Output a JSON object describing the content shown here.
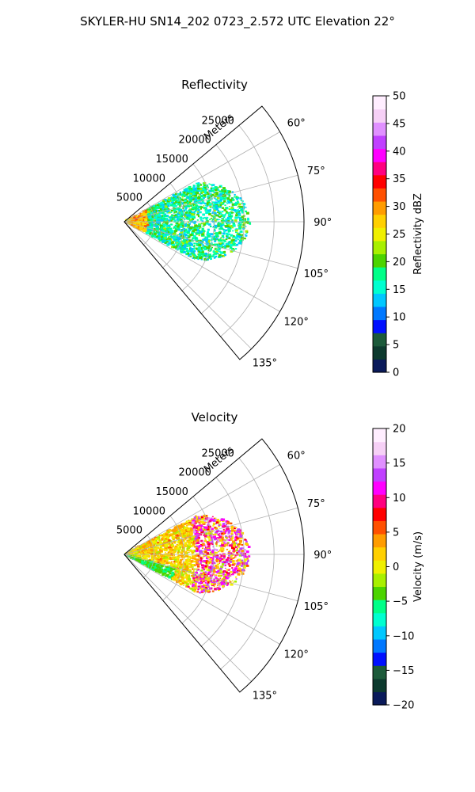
{
  "figure": {
    "suptitle": "SKYLER-HU  SN14_202  0723_2.572 UTC Elevation 22°"
  },
  "chart_data": [
    {
      "type": "polar-sector-ppi",
      "title": "Reflectivity",
      "radial_label": "Meters",
      "theta_ticks": [
        "60°",
        "75°",
        "90°",
        "105°",
        "120°",
        "135°"
      ],
      "theta_values": [
        60,
        75,
        90,
        105,
        120,
        135
      ],
      "theta_range_deg": [
        50,
        140
      ],
      "r_ticks": [
        "5000",
        "10000",
        "15000",
        "20000",
        "25000"
      ],
      "r_values": [
        5000,
        10000,
        15000,
        20000,
        25000
      ],
      "r_max": 30000,
      "grid": true,
      "colorbar": {
        "label": "Reflectivity dBZ",
        "min": 0,
        "max": 50,
        "ticks": [
          "0",
          "5",
          "10",
          "15",
          "20",
          "25",
          "30",
          "35",
          "40",
          "45",
          "50"
        ],
        "tick_values": [
          0,
          5,
          10,
          15,
          20,
          25,
          30,
          35,
          40,
          45,
          50
        ],
        "stops": [
          "#0a1a5a",
          "#0d3a2e",
          "#1c5a3a",
          "#0010ff",
          "#0078ff",
          "#00c8ff",
          "#00ffd0",
          "#00ff88",
          "#4cd400",
          "#a8f000",
          "#f0f000",
          "#ffd000",
          "#ff9c00",
          "#ff5000",
          "#ff0000",
          "#ff0080",
          "#ff00ff",
          "#c040ff",
          "#e090ff",
          "#f6d0f6",
          "#ffeeff"
        ]
      },
      "data_extent": {
        "r_range_m": [
          0,
          21000
        ],
        "theta_range_deg": [
          62,
          118
        ],
        "dominant_dBZ": [
          12,
          22
        ],
        "near_origin_dBZ": [
          24,
          33
        ]
      }
    },
    {
      "type": "polar-sector-ppi",
      "title": "Velocity",
      "radial_label": "Meters",
      "theta_ticks": [
        "60°",
        "75°",
        "90°",
        "105°",
        "120°",
        "135°"
      ],
      "theta_values": [
        60,
        75,
        90,
        105,
        120,
        135
      ],
      "theta_range_deg": [
        50,
        140
      ],
      "r_ticks": [
        "5000",
        "10000",
        "15000",
        "20000",
        "25000"
      ],
      "r_values": [
        5000,
        10000,
        15000,
        20000,
        25000
      ],
      "r_max": 30000,
      "grid": true,
      "colorbar": {
        "label": "Velocity (m/s)",
        "min": -20,
        "max": 20,
        "ticks": [
          "−20",
          "−15",
          "−10",
          "−5",
          "0",
          "5",
          "10",
          "15",
          "20"
        ],
        "tick_values": [
          -20,
          -15,
          -10,
          -5,
          0,
          5,
          10,
          15,
          20
        ],
        "stops": [
          "#0a1a5a",
          "#0d3a2e",
          "#1c5a3a",
          "#0010ff",
          "#0078ff",
          "#00c8ff",
          "#00ffd0",
          "#00ff88",
          "#4cd400",
          "#a8f000",
          "#f0f000",
          "#ffd000",
          "#ff9c00",
          "#ff5000",
          "#ff0000",
          "#ff0080",
          "#ff00ff",
          "#c040ff",
          "#e090ff",
          "#f6d0f6",
          "#ffeeff"
        ]
      },
      "data_extent": {
        "r_range_m": [
          0,
          21000
        ],
        "theta_range_deg": [
          62,
          118
        ],
        "dominant_velocity_ms": [
          -2,
          5
        ],
        "outer_velocity_ms": [
          8,
          15
        ],
        "lower_near_velocity_ms": [
          -6,
          -3
        ]
      }
    }
  ]
}
